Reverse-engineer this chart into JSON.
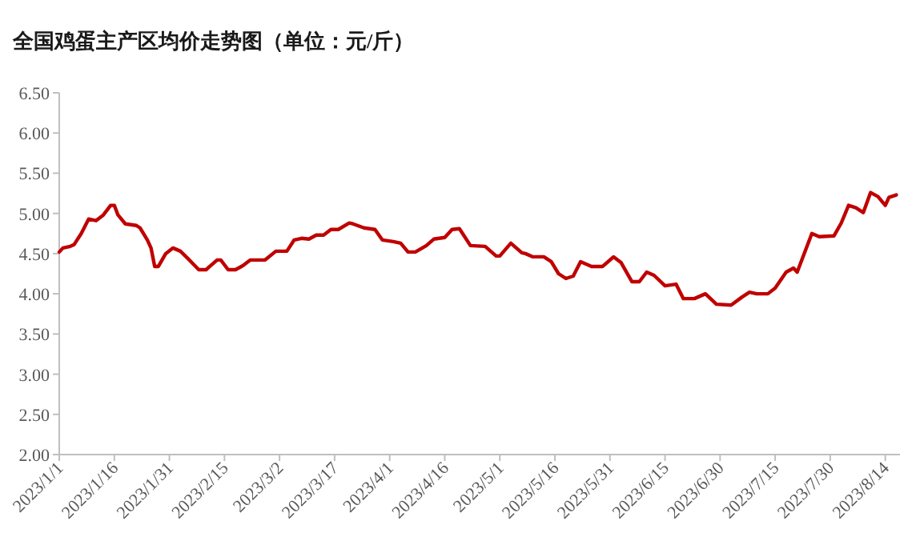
{
  "chart_data": {
    "type": "line",
    "title": "全国鸡蛋主产区均价走势图（单位：元/斤）",
    "x": [
      "2023-01-01",
      "2023-01-02",
      "2023-01-04",
      "2023-01-05",
      "2023-01-07",
      "2023-01-09",
      "2023-01-11",
      "2023-01-13",
      "2023-01-15",
      "2023-01-16",
      "2023-01-17",
      "2023-01-19",
      "2023-01-22",
      "2023-01-23",
      "2023-01-25",
      "2023-01-26",
      "2023-01-27",
      "2023-01-28",
      "2023-01-30",
      "2023-02-01",
      "2023-02-03",
      "2023-02-05",
      "2023-02-08",
      "2023-02-10",
      "2023-02-11",
      "2023-02-13",
      "2023-02-14",
      "2023-02-16",
      "2023-02-18",
      "2023-02-20",
      "2023-02-22",
      "2023-02-26",
      "2023-03-01",
      "2023-03-04",
      "2023-03-06",
      "2023-03-08",
      "2023-03-10",
      "2023-03-12",
      "2023-03-14",
      "2023-03-16",
      "2023-03-18",
      "2023-03-21",
      "2023-03-22",
      "2023-03-25",
      "2023-03-28",
      "2023-03-30",
      "2023-04-02",
      "2023-04-04",
      "2023-04-06",
      "2023-04-08",
      "2023-04-11",
      "2023-04-13",
      "2023-04-16",
      "2023-04-18",
      "2023-04-20",
      "2023-04-23",
      "2023-04-27",
      "2023-04-30",
      "2023-05-01",
      "2023-05-04",
      "2023-05-07",
      "2023-05-08",
      "2023-05-10",
      "2023-05-13",
      "2023-05-15",
      "2023-05-17",
      "2023-05-19",
      "2023-05-21",
      "2023-05-23",
      "2023-05-26",
      "2023-05-29",
      "2023-06-01",
      "2023-06-03",
      "2023-06-06",
      "2023-06-08",
      "2023-06-10",
      "2023-06-12",
      "2023-06-15",
      "2023-06-18",
      "2023-06-20",
      "2023-06-23",
      "2023-06-26",
      "2023-06-29",
      "2023-07-03",
      "2023-07-06",
      "2023-07-08",
      "2023-07-10",
      "2023-07-13",
      "2023-07-15",
      "2023-07-18",
      "2023-07-20",
      "2023-07-21",
      "2023-07-25",
      "2023-07-27",
      "2023-07-31",
      "2023-08-02",
      "2023-08-04",
      "2023-08-06",
      "2023-08-08",
      "2023-08-10",
      "2023-08-12",
      "2023-08-14",
      "2023-08-15",
      "2023-08-17"
    ],
    "series": [
      {
        "color": "#c00000",
        "values": [
          4.52,
          4.57,
          4.59,
          4.61,
          4.75,
          4.93,
          4.91,
          4.98,
          5.1,
          5.1,
          4.98,
          4.87,
          4.85,
          4.82,
          4.67,
          4.57,
          4.34,
          4.34,
          4.5,
          4.57,
          4.53,
          4.44,
          4.3,
          4.3,
          4.34,
          4.42,
          4.42,
          4.3,
          4.3,
          4.35,
          4.42,
          4.42,
          4.53,
          4.53,
          4.67,
          4.69,
          4.68,
          4.73,
          4.73,
          4.8,
          4.8,
          4.88,
          4.87,
          4.82,
          4.8,
          4.67,
          4.65,
          4.63,
          4.52,
          4.52,
          4.6,
          4.68,
          4.7,
          4.8,
          4.81,
          4.6,
          4.59,
          4.47,
          4.47,
          4.63,
          4.51,
          4.5,
          4.46,
          4.46,
          4.4,
          4.25,
          4.19,
          4.22,
          4.4,
          4.34,
          4.34,
          4.46,
          4.39,
          4.15,
          4.15,
          4.27,
          4.23,
          4.1,
          4.12,
          3.94,
          3.94,
          4.0,
          3.87,
          3.86,
          3.96,
          4.02,
          4.0,
          4.0,
          4.07,
          4.27,
          4.32,
          4.27,
          4.75,
          4.71,
          4.72,
          4.88,
          5.1,
          5.07,
          5.01,
          5.26,
          5.21,
          5.1,
          5.2,
          5.23
        ]
      }
    ],
    "xlim": [
      "2023-01-01",
      "2023-08-18"
    ],
    "xticks": [
      {
        "value": "2023-01-01",
        "label": "2023/1/1"
      },
      {
        "value": "2023-01-16",
        "label": "2023/1/16"
      },
      {
        "value": "2023-01-31",
        "label": "2023/1/31"
      },
      {
        "value": "2023-02-15",
        "label": "2023/2/15"
      },
      {
        "value": "2023-03-02",
        "label": "2023/3/2"
      },
      {
        "value": "2023-03-17",
        "label": "2023/3/17"
      },
      {
        "value": "2023-04-01",
        "label": "2023/4/1"
      },
      {
        "value": "2023-04-16",
        "label": "2023/4/16"
      },
      {
        "value": "2023-05-01",
        "label": "2023/5/1"
      },
      {
        "value": "2023-05-16",
        "label": "2023/5/16"
      },
      {
        "value": "2023-05-31",
        "label": "2023/5/31"
      },
      {
        "value": "2023-06-15",
        "label": "2023/6/15"
      },
      {
        "value": "2023-06-30",
        "label": "2023/6/30"
      },
      {
        "value": "2023-07-15",
        "label": "2023/7/15"
      },
      {
        "value": "2023-07-30",
        "label": "2023/7/30"
      },
      {
        "value": "2023-08-14",
        "label": "2023/8/14"
      }
    ],
    "ylim": [
      2.0,
      6.5
    ],
    "yticks": [
      {
        "value": 2.0,
        "label": "2.00"
      },
      {
        "value": 2.5,
        "label": "2.50"
      },
      {
        "value": 3.0,
        "label": "3.00"
      },
      {
        "value": 3.5,
        "label": "3.50"
      },
      {
        "value": 4.0,
        "label": "4.00"
      },
      {
        "value": 4.5,
        "label": "4.50"
      },
      {
        "value": 5.0,
        "label": "5.00"
      },
      {
        "value": 5.5,
        "label": "5.50"
      },
      {
        "value": 6.0,
        "label": "6.00"
      },
      {
        "value": 6.5,
        "label": "6.50"
      }
    ]
  }
}
